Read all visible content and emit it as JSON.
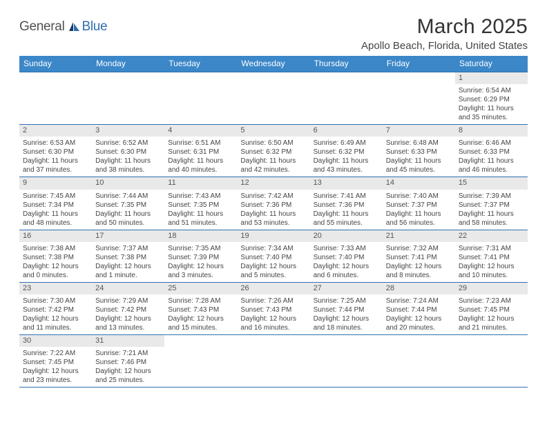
{
  "brand": {
    "part1": "General",
    "part2": "Blue"
  },
  "title": "March 2025",
  "location": "Apollo Beach, Florida, United States",
  "colors": {
    "header_bg": "#3b87c8",
    "border": "#2f6fb0",
    "daynum_bg": "#e9e9e9",
    "text": "#333333",
    "brand_blue": "#2f6fb0"
  },
  "daysOfWeek": [
    "Sunday",
    "Monday",
    "Tuesday",
    "Wednesday",
    "Thursday",
    "Friday",
    "Saturday"
  ],
  "weeks": [
    [
      null,
      null,
      null,
      null,
      null,
      null,
      {
        "n": "1",
        "sr": "6:54 AM",
        "ss": "6:29 PM",
        "dl": "11 hours and 35 minutes."
      }
    ],
    [
      {
        "n": "2",
        "sr": "6:53 AM",
        "ss": "6:30 PM",
        "dl": "11 hours and 37 minutes."
      },
      {
        "n": "3",
        "sr": "6:52 AM",
        "ss": "6:30 PM",
        "dl": "11 hours and 38 minutes."
      },
      {
        "n": "4",
        "sr": "6:51 AM",
        "ss": "6:31 PM",
        "dl": "11 hours and 40 minutes."
      },
      {
        "n": "5",
        "sr": "6:50 AM",
        "ss": "6:32 PM",
        "dl": "11 hours and 42 minutes."
      },
      {
        "n": "6",
        "sr": "6:49 AM",
        "ss": "6:32 PM",
        "dl": "11 hours and 43 minutes."
      },
      {
        "n": "7",
        "sr": "6:48 AM",
        "ss": "6:33 PM",
        "dl": "11 hours and 45 minutes."
      },
      {
        "n": "8",
        "sr": "6:46 AM",
        "ss": "6:33 PM",
        "dl": "11 hours and 46 minutes."
      }
    ],
    [
      {
        "n": "9",
        "sr": "7:45 AM",
        "ss": "7:34 PM",
        "dl": "11 hours and 48 minutes."
      },
      {
        "n": "10",
        "sr": "7:44 AM",
        "ss": "7:35 PM",
        "dl": "11 hours and 50 minutes."
      },
      {
        "n": "11",
        "sr": "7:43 AM",
        "ss": "7:35 PM",
        "dl": "11 hours and 51 minutes."
      },
      {
        "n": "12",
        "sr": "7:42 AM",
        "ss": "7:36 PM",
        "dl": "11 hours and 53 minutes."
      },
      {
        "n": "13",
        "sr": "7:41 AM",
        "ss": "7:36 PM",
        "dl": "11 hours and 55 minutes."
      },
      {
        "n": "14",
        "sr": "7:40 AM",
        "ss": "7:37 PM",
        "dl": "11 hours and 56 minutes."
      },
      {
        "n": "15",
        "sr": "7:39 AM",
        "ss": "7:37 PM",
        "dl": "11 hours and 58 minutes."
      }
    ],
    [
      {
        "n": "16",
        "sr": "7:38 AM",
        "ss": "7:38 PM",
        "dl": "12 hours and 0 minutes."
      },
      {
        "n": "17",
        "sr": "7:37 AM",
        "ss": "7:38 PM",
        "dl": "12 hours and 1 minute."
      },
      {
        "n": "18",
        "sr": "7:35 AM",
        "ss": "7:39 PM",
        "dl": "12 hours and 3 minutes."
      },
      {
        "n": "19",
        "sr": "7:34 AM",
        "ss": "7:40 PM",
        "dl": "12 hours and 5 minutes."
      },
      {
        "n": "20",
        "sr": "7:33 AM",
        "ss": "7:40 PM",
        "dl": "12 hours and 6 minutes."
      },
      {
        "n": "21",
        "sr": "7:32 AM",
        "ss": "7:41 PM",
        "dl": "12 hours and 8 minutes."
      },
      {
        "n": "22",
        "sr": "7:31 AM",
        "ss": "7:41 PM",
        "dl": "12 hours and 10 minutes."
      }
    ],
    [
      {
        "n": "23",
        "sr": "7:30 AM",
        "ss": "7:42 PM",
        "dl": "12 hours and 11 minutes."
      },
      {
        "n": "24",
        "sr": "7:29 AM",
        "ss": "7:42 PM",
        "dl": "12 hours and 13 minutes."
      },
      {
        "n": "25",
        "sr": "7:28 AM",
        "ss": "7:43 PM",
        "dl": "12 hours and 15 minutes."
      },
      {
        "n": "26",
        "sr": "7:26 AM",
        "ss": "7:43 PM",
        "dl": "12 hours and 16 minutes."
      },
      {
        "n": "27",
        "sr": "7:25 AM",
        "ss": "7:44 PM",
        "dl": "12 hours and 18 minutes."
      },
      {
        "n": "28",
        "sr": "7:24 AM",
        "ss": "7:44 PM",
        "dl": "12 hours and 20 minutes."
      },
      {
        "n": "29",
        "sr": "7:23 AM",
        "ss": "7:45 PM",
        "dl": "12 hours and 21 minutes."
      }
    ],
    [
      {
        "n": "30",
        "sr": "7:22 AM",
        "ss": "7:45 PM",
        "dl": "12 hours and 23 minutes."
      },
      {
        "n": "31",
        "sr": "7:21 AM",
        "ss": "7:46 PM",
        "dl": "12 hours and 25 minutes."
      },
      null,
      null,
      null,
      null,
      null
    ]
  ],
  "labels": {
    "sunrise": "Sunrise:",
    "sunset": "Sunset:",
    "daylight": "Daylight:"
  }
}
